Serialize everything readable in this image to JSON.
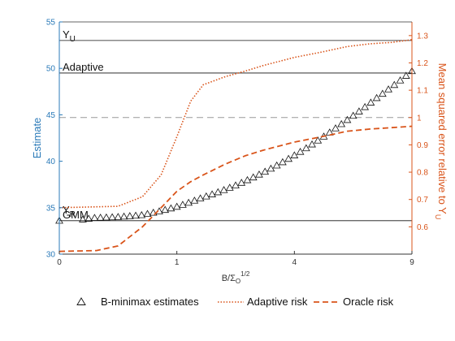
{
  "chart_data": {
    "type": "line",
    "xlabel": "B/Σ_O^{1/2}",
    "ylabel_left": "Estimate",
    "ylabel_right": "Mean squared error relative to Y_U",
    "x_tick_labels": [
      "0",
      "1",
      "4",
      "9"
    ],
    "x_scale": "sqrt",
    "xlim": [
      0,
      9
    ],
    "ylim_left": [
      30,
      55
    ],
    "y_ticks_left": [
      30,
      35,
      40,
      45,
      50,
      55
    ],
    "ylim_right": [
      0.5,
      1.35
    ],
    "y_ticks_right": [
      0.6,
      0.7,
      0.8,
      0.9,
      1,
      1.1,
      1.2,
      1.3
    ],
    "reference_lines": [
      {
        "label": "Y",
        "sub": "U",
        "y": 53.0,
        "style": "solid"
      },
      {
        "label": "Adaptive",
        "y": 49.5,
        "style": "solid"
      },
      {
        "label": "GMM",
        "y": 33.6,
        "style": "solid"
      },
      {
        "label": "Y",
        "sub": "R",
        "y": 33.6,
        "style": "solid"
      },
      {
        "label": "",
        "y_right": 1.0,
        "style": "dashed"
      }
    ],
    "series": [
      {
        "name": "B-minimax estimates",
        "axis": "left",
        "marker": "triangle",
        "x": [
          0,
          0.09,
          0.25,
          0.49,
          0.72,
          1.0,
          1.44,
          2.25,
          3.24,
          4.41,
          5.76,
          7.29,
          9.0
        ],
        "y": [
          33.6,
          33.9,
          34.0,
          34.2,
          34.6,
          35.1,
          36.0,
          37.4,
          39.2,
          41.4,
          44.0,
          46.8,
          49.7
        ]
      },
      {
        "name": "Adaptive risk",
        "axis": "right",
        "style": "dotted",
        "color": "#d9541a",
        "x": [
          0,
          0.25,
          0.5,
          0.75,
          1.0,
          1.25,
          1.5,
          2.0,
          2.5,
          3.0,
          4.0,
          5.0,
          6.0,
          7.0,
          8.0,
          9.0
        ],
        "y": [
          0.67,
          0.675,
          0.71,
          0.79,
          0.93,
          1.06,
          1.12,
          1.15,
          1.17,
          1.19,
          1.22,
          1.24,
          1.26,
          1.27,
          1.275,
          1.285
        ]
      },
      {
        "name": "Oracle risk",
        "axis": "right",
        "style": "dashed",
        "color": "#d9541a",
        "x": [
          0,
          0.1,
          0.25,
          0.5,
          0.75,
          1.0,
          1.25,
          1.5,
          2.0,
          2.5,
          3.0,
          4.0,
          5.0,
          6.0,
          7.0,
          8.0,
          9.0
        ],
        "y": [
          0.51,
          0.513,
          0.53,
          0.6,
          0.67,
          0.73,
          0.765,
          0.79,
          0.83,
          0.86,
          0.88,
          0.91,
          0.93,
          0.95,
          0.958,
          0.963,
          0.968
        ]
      }
    ],
    "legend_position": "bottom"
  },
  "colors": {
    "left_axis": "#2a7ab8",
    "right_axis": "#d9541a",
    "reference": "#111111",
    "dashed_reference": "#999999"
  }
}
